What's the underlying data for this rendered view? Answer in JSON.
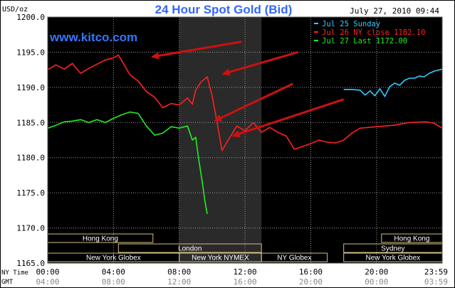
{
  "chart_data": {
    "type": "line",
    "title": "24 Hour Spot Gold (Bid)",
    "watermark": "www.kitco.com",
    "timestamp": "July 27, 2010 09:44",
    "y_unit_label": "USD/oz",
    "ylim": [
      1165.0,
      1200.0
    ],
    "y_ticks": [
      "1200.0",
      "1195.0",
      "1190.0",
      "1185.0",
      "1180.0",
      "1175.0",
      "1170.0",
      "1165.0"
    ],
    "x_tz_labels": {
      "ny": "NY Time",
      "gmt": "GMT"
    },
    "x_ticks_ny": [
      "00:00",
      "04:00",
      "08:00",
      "12:00",
      "16:00",
      "20:00",
      "23:59"
    ],
    "x_ticks_gmt": [
      "04:00",
      "08:00",
      "12:00",
      "16:00",
      "20:00",
      "00:00",
      "03:59"
    ],
    "legend": [
      {
        "name": "Jul 25 Sunday",
        "color": "#33ccff"
      },
      {
        "name": "Jul 26 NY close 1182.10",
        "color": "#ff2020"
      },
      {
        "name": "Jul 27 Last 1172.00",
        "color": "#22ee22"
      }
    ],
    "series": [
      {
        "name": "Jul 25 Sunday",
        "color": "#33ccff",
        "x": [
          18.0,
          18.5,
          19.0,
          19.3,
          19.6,
          19.9,
          20.2,
          20.5,
          20.8,
          21.1,
          21.4,
          21.7,
          22.0,
          22.3,
          22.6,
          22.9,
          23.2,
          23.5,
          23.99
        ],
        "y": [
          1189.7,
          1189.7,
          1189.6,
          1188.9,
          1189.5,
          1188.8,
          1189.8,
          1188.7,
          1190.1,
          1190.6,
          1190.3,
          1191.0,
          1191.3,
          1191.3,
          1191.6,
          1191.5,
          1192.0,
          1192.3,
          1192.6
        ]
      },
      {
        "name": "Jul 26 NY close 1182.10",
        "color": "#ff2020",
        "x": [
          0.0,
          0.5,
          1.0,
          1.5,
          2.0,
          2.5,
          3.0,
          3.5,
          4.0,
          4.3,
          4.6,
          5.0,
          5.5,
          6.0,
          6.5,
          7.0,
          7.5,
          8.0,
          8.5,
          8.8,
          9.0,
          9.3,
          9.7,
          10.0,
          10.3,
          10.6,
          11.0,
          11.5,
          12.0,
          12.5,
          13.0,
          13.5,
          14.0,
          14.5,
          15.0,
          15.5,
          16.0,
          16.5,
          17.0,
          17.5,
          18.0,
          18.5,
          19.0,
          20.0,
          21.0,
          22.0,
          23.0,
          23.5,
          23.99
        ],
        "y": [
          1192.5,
          1193.2,
          1192.6,
          1193.4,
          1192.0,
          1192.7,
          1193.3,
          1193.9,
          1194.2,
          1194.6,
          1193.4,
          1191.8,
          1190.9,
          1189.4,
          1188.6,
          1187.1,
          1187.7,
          1187.5,
          1188.5,
          1187.6,
          1189.6,
          1190.7,
          1191.5,
          1188.8,
          1185.0,
          1181.0,
          1182.6,
          1184.5,
          1183.8,
          1185.0,
          1183.6,
          1184.3,
          1183.6,
          1183.1,
          1181.2,
          1181.6,
          1182.0,
          1182.5,
          1182.2,
          1182.1,
          1182.5,
          1183.5,
          1184.2,
          1184.4,
          1184.6,
          1185.0,
          1185.1,
          1184.9,
          1184.2
        ]
      },
      {
        "name": "Jul 27 Last 1172.00",
        "color": "#22ee22",
        "x": [
          0.0,
          0.5,
          1.0,
          1.5,
          2.0,
          2.5,
          3.0,
          3.5,
          4.0,
          4.5,
          5.0,
          5.5,
          6.0,
          6.5,
          7.0,
          7.5,
          8.0,
          8.5,
          8.8,
          9.0,
          9.2,
          9.4,
          9.55,
          9.7
        ],
        "y": [
          1184.2,
          1184.6,
          1185.1,
          1185.2,
          1185.4,
          1185.0,
          1185.4,
          1185.0,
          1185.6,
          1186.1,
          1186.5,
          1186.3,
          1184.5,
          1183.2,
          1183.5,
          1184.4,
          1184.2,
          1184.5,
          1182.5,
          1182.9,
          1179.5,
          1176.5,
          1174.0,
          1172.0
        ]
      }
    ],
    "highlight_band": {
      "from_hour": 8.0,
      "to_hour": 13.0,
      "label": "New York NYMEX"
    },
    "arrows": [
      {
        "from": [
          11.8,
          1196.5
        ],
        "to": [
          6.5,
          1194.4
        ]
      },
      {
        "from": [
          15.2,
          1195.0
        ],
        "to": [
          10.8,
          1192.0
        ]
      },
      {
        "from": [
          14.9,
          1190.5
        ],
        "to": [
          10.3,
          1185.4
        ]
      },
      {
        "from": [
          18.0,
          1188.3
        ],
        "to": [
          11.4,
          1183.2
        ]
      }
    ],
    "sessions": [
      {
        "label": "Hong Kong",
        "row": 0,
        "from_hour": 0.0,
        "to_hour": 6.4
      },
      {
        "label": "Hong Kong",
        "row": 0,
        "from_hour": 20.3,
        "to_hour": 23.99
      },
      {
        "label": "London",
        "row": 1,
        "from_hour": 4.3,
        "to_hour": 13.0
      },
      {
        "label": "Sydney",
        "row": 1,
        "from_hour": 18.0,
        "to_hour": 23.99
      },
      {
        "label": "New York Globex",
        "row": 2,
        "from_hour": 0.0,
        "to_hour": 8.0
      },
      {
        "label": "New York NYMEX",
        "row": 2,
        "from_hour": 8.0,
        "to_hour": 13.0
      },
      {
        "label": "NY Globex",
        "row": 2,
        "from_hour": 13.0,
        "to_hour": 17.0
      },
      {
        "label": "New York Globex",
        "row": 2,
        "from_hour": 18.0,
        "to_hour": 23.99
      }
    ],
    "colors": {
      "plot_bg": "#000000",
      "grid": "#9a9a9a",
      "title": "#3366ff",
      "watermark": "#3377ff",
      "band": "#2a2a2a",
      "session_box_border": "#d4c080",
      "session_text": "#ffffff",
      "arrow": "#cc1111",
      "axis_text": "#000000",
      "outer_bg": "#000000"
    }
  }
}
